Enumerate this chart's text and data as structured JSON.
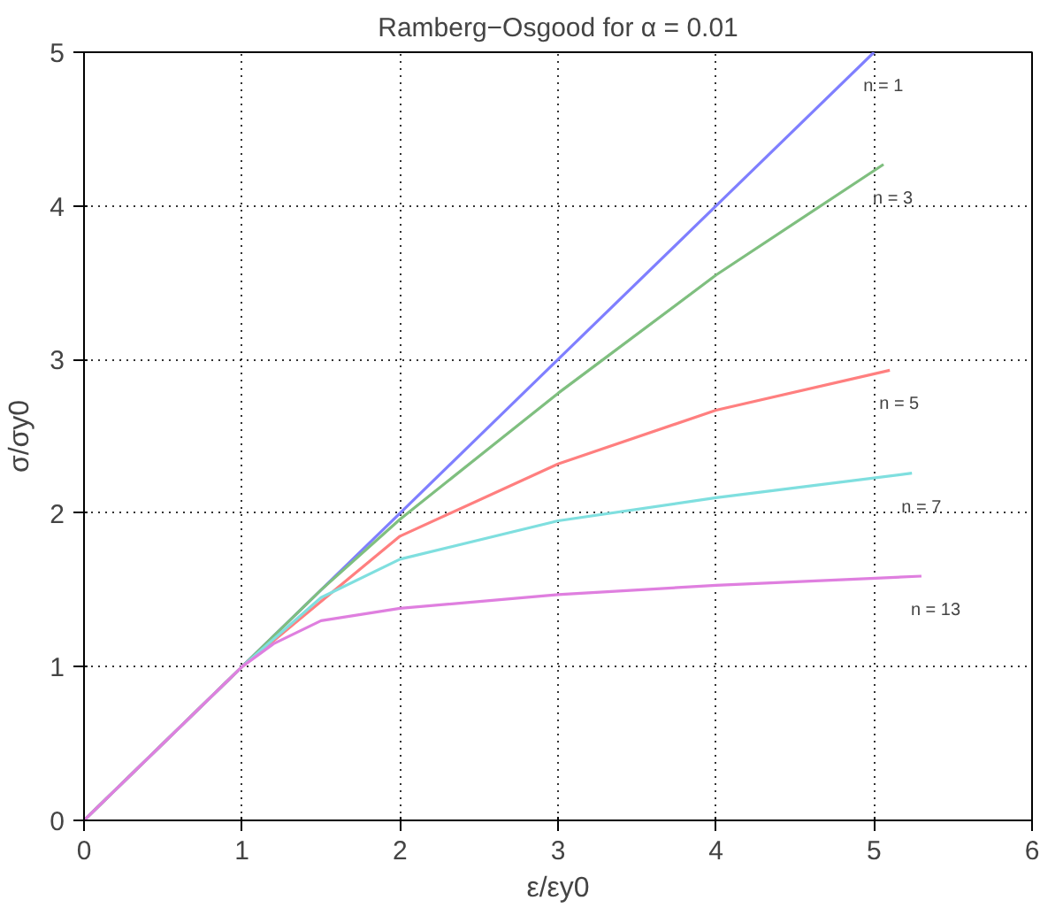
{
  "chart_data": {
    "type": "line",
    "title": "Ramberg−Osgood for α = 0.01",
    "xlabel": "ε/εy0",
    "ylabel": "σ/σy0",
    "xlim": [
      0,
      6
    ],
    "ylim": [
      0,
      5
    ],
    "xticks": [
      0,
      1,
      2,
      3,
      4,
      5,
      6
    ],
    "yticks": [
      0,
      1,
      2,
      3,
      4,
      5
    ],
    "grid": true,
    "marker": "none",
    "line_style": "solid",
    "series": [
      {
        "name": "n = 1",
        "color": "#7f7fff",
        "x": [
          0,
          1,
          2,
          3,
          4,
          5
        ],
        "values": [
          0,
          1,
          2,
          3,
          4,
          5
        ]
      },
      {
        "name": "n = 3",
        "color": "#7fbf7f",
        "x": [
          0,
          1,
          1.5,
          2,
          3,
          4,
          5.06
        ],
        "values": [
          0,
          1,
          1.5,
          1.96,
          2.78,
          3.55,
          4.27
        ]
      },
      {
        "name": "n = 5",
        "color": "#ff7f7f",
        "x": [
          0,
          1,
          2,
          3,
          4,
          5.1
        ],
        "values": [
          0,
          1,
          1.85,
          2.32,
          2.67,
          2.93
        ]
      },
      {
        "name": "n = 7",
        "color": "#7fdfdf",
        "x": [
          0,
          1,
          1.5,
          2,
          3,
          4,
          5.24
        ],
        "values": [
          0,
          1,
          1.45,
          1.7,
          1.95,
          2.1,
          2.26
        ]
      },
      {
        "name": "n = 13",
        "color": "#df7fdf",
        "x": [
          0,
          1,
          1.2,
          1.5,
          2,
          3,
          4,
          5.3
        ],
        "values": [
          0,
          1,
          1.15,
          1.3,
          1.38,
          1.47,
          1.53,
          1.59
        ]
      }
    ]
  }
}
